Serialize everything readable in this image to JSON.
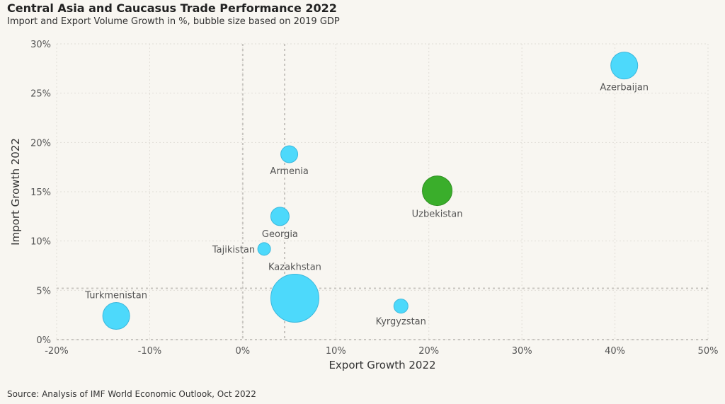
{
  "header": {
    "title": "Central Asia and Caucasus Trade Performance 2022",
    "subtitle": "Import and Export Volume Growth in %, bubble size based on 2019 GDP"
  },
  "footer": {
    "source": "Source: Analysis of IMF World Economic Outlook, Oct 2022"
  },
  "chart_data": {
    "type": "scatter",
    "title": "Central Asia and Caucasus Trade Performance 2022",
    "subtitle": "Import and Export Volume Growth in %, bubble size based on 2019 GDP",
    "xlabel": "Export Growth 2022",
    "ylabel": "Import Growth 2022",
    "xlim": [
      -20,
      50
    ],
    "ylim": [
      0,
      30
    ],
    "x_ticks": [
      "-20%",
      "-10%",
      "0%",
      "10%",
      "20%",
      "30%",
      "40%",
      "50%"
    ],
    "y_ticks": [
      "0%",
      "5%",
      "10%",
      "15%",
      "20%",
      "25%",
      "30%"
    ],
    "grid": true,
    "reference_lines": {
      "x": 0,
      "x2": 4.5,
      "y": 5.2
    },
    "colors": {
      "default": "#4dd9fb",
      "highlight": "#3aae2b"
    },
    "points": [
      {
        "name": "Azerbaijan",
        "x": 41.0,
        "y": 27.8,
        "size": 19,
        "highlight": false
      },
      {
        "name": "Armenia",
        "x": 5.0,
        "y": 18.8,
        "size": 12,
        "highlight": false
      },
      {
        "name": "Uzbekistan",
        "x": 20.9,
        "y": 15.1,
        "size": 21,
        "highlight": true
      },
      {
        "name": "Georgia",
        "x": 4.0,
        "y": 12.5,
        "size": 13,
        "highlight": false
      },
      {
        "name": "Tajikistan",
        "x": 2.3,
        "y": 9.2,
        "size": 9,
        "highlight": false
      },
      {
        "name": "Kazakhstan",
        "x": 5.6,
        "y": 4.2,
        "size": 34,
        "highlight": false
      },
      {
        "name": "Turkmenistan",
        "x": -13.6,
        "y": 2.4,
        "size": 19,
        "highlight": false
      },
      {
        "name": "Kyrgyzstan",
        "x": 17.0,
        "y": 3.4,
        "size": 10,
        "highlight": false
      }
    ]
  }
}
